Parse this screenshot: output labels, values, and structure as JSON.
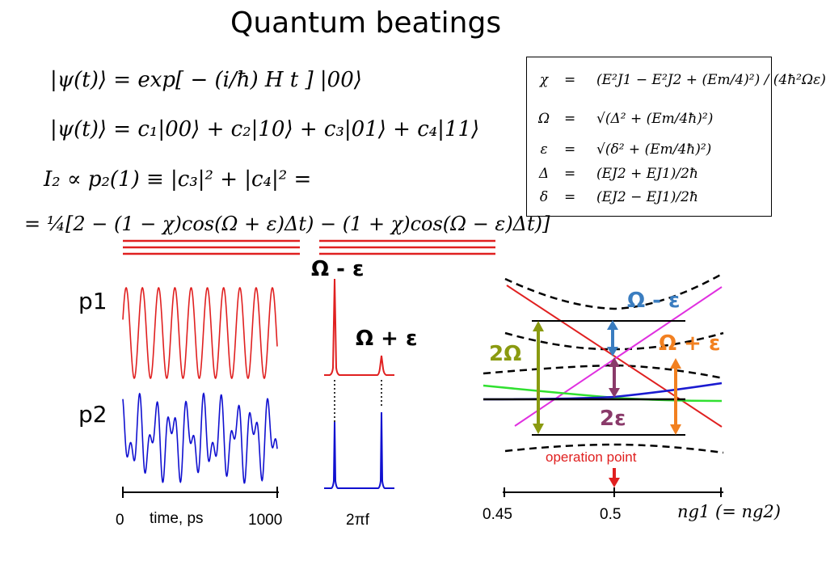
{
  "title": "Quantum beatings",
  "equations": {
    "psi_evolution": "|ψ(t)⟩ = exp[ − (i/ħ) H t ] |00⟩",
    "psi_expansion": "|ψ(t)⟩ = c₁|00⟩ + c₂|10⟩ + c₃|01⟩ + c₄|11⟩",
    "current_prob": "I₂ ∝ p₂(1) ≡ |c₃|² + |c₄|² =",
    "beat_formula": "= ¼[2 − (1 − χ)cos(Ω + ε)Δt) − (1 + χ)cos(Ω − ε)Δt)]"
  },
  "definitions": [
    {
      "symbol": "χ",
      "eq": "=",
      "rhs": "(E²J1 − E²J2 + (Em/4)²) / (4ħ²Ωε)"
    },
    {
      "symbol": "Ω",
      "eq": "=",
      "rhs": "√(Δ² + (Em/4ħ)²)"
    },
    {
      "symbol": "ε",
      "eq": "=",
      "rhs": "√(δ² + (Em/4ħ)²)"
    },
    {
      "symbol": "Δ",
      "eq": "=",
      "rhs": "(EJ2 + EJ1)/2ħ"
    },
    {
      "symbol": "δ",
      "eq": "=",
      "rhs": "(EJ2 − EJ1)/2ħ"
    }
  ],
  "time_panel": {
    "p1_label": "p1",
    "p2_label": "p2",
    "x_start": "0",
    "x_label": "time, ps",
    "x_end": "1000",
    "p1_color": "#e02020",
    "p2_color": "#1010d0"
  },
  "spectrum_panel": {
    "peak_minus_label": "Ω - ε",
    "peak_plus_label": "Ω + ε",
    "x_label": "2πf"
  },
  "energy_panel": {
    "omega_minus_eps": "Ω - ε",
    "omega_plus_eps": "Ω + ε",
    "two_omega": "2Ω",
    "two_eps": "2ε",
    "operation_point": "operation point",
    "tick_045": "0.45",
    "tick_05": "0.5",
    "x_axis_label": "ng1 (= ng2)",
    "colors": {
      "red_line": "#e02020",
      "magenta_line": "#e030e0",
      "green_line": "#30e030",
      "blue_line": "#1a1ad0",
      "steelblue_arrow": "#3a7dc0",
      "purple_arrow": "#8a3a6a",
      "olive_arrow": "#8a9a10",
      "orange_arrow": "#f28020",
      "operation_red": "#e02020"
    }
  }
}
